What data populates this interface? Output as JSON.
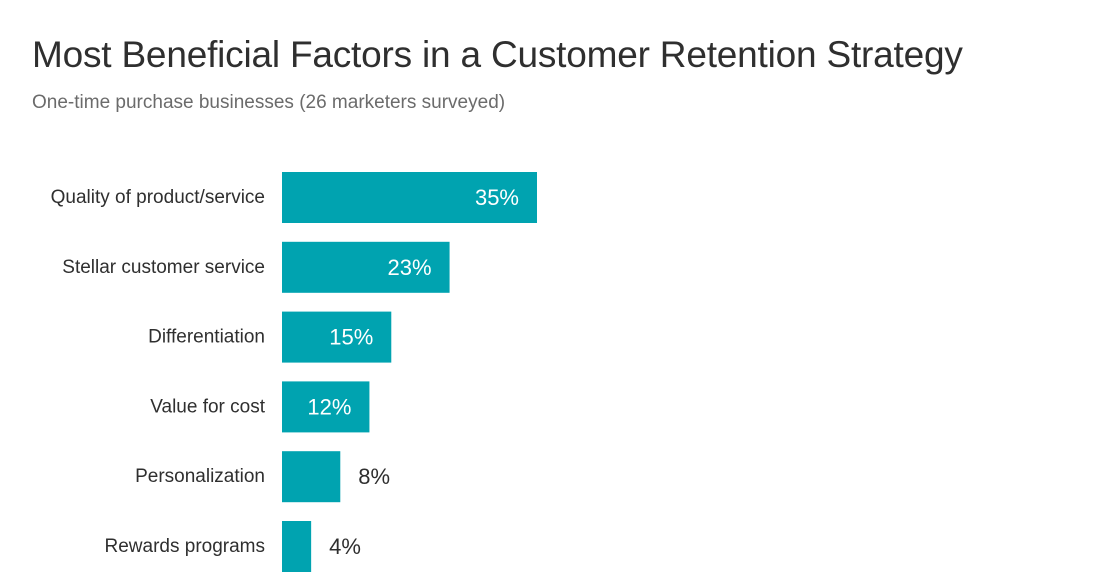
{
  "chart_data": {
    "type": "bar",
    "orientation": "horizontal",
    "title": "Most Beneficial Factors in a Customer Retention Strategy",
    "subtitle": "One-time purchase businesses (26 marketers surveyed)",
    "categories": [
      "Quality of product/service",
      "Stellar customer service",
      "Differentiation",
      "Value for cost",
      "Personalization",
      "Rewards programs"
    ],
    "values": [
      35,
      23,
      15,
      12,
      8,
      4
    ],
    "value_labels": [
      "35%",
      "23%",
      "15%",
      "12%",
      "8%",
      "4%"
    ],
    "unit": "%",
    "bar_color": "#00a3b0",
    "label_inside_color": "#ffffff",
    "label_outside_color": "#2f2f2f",
    "grid": false,
    "legend": "none"
  }
}
